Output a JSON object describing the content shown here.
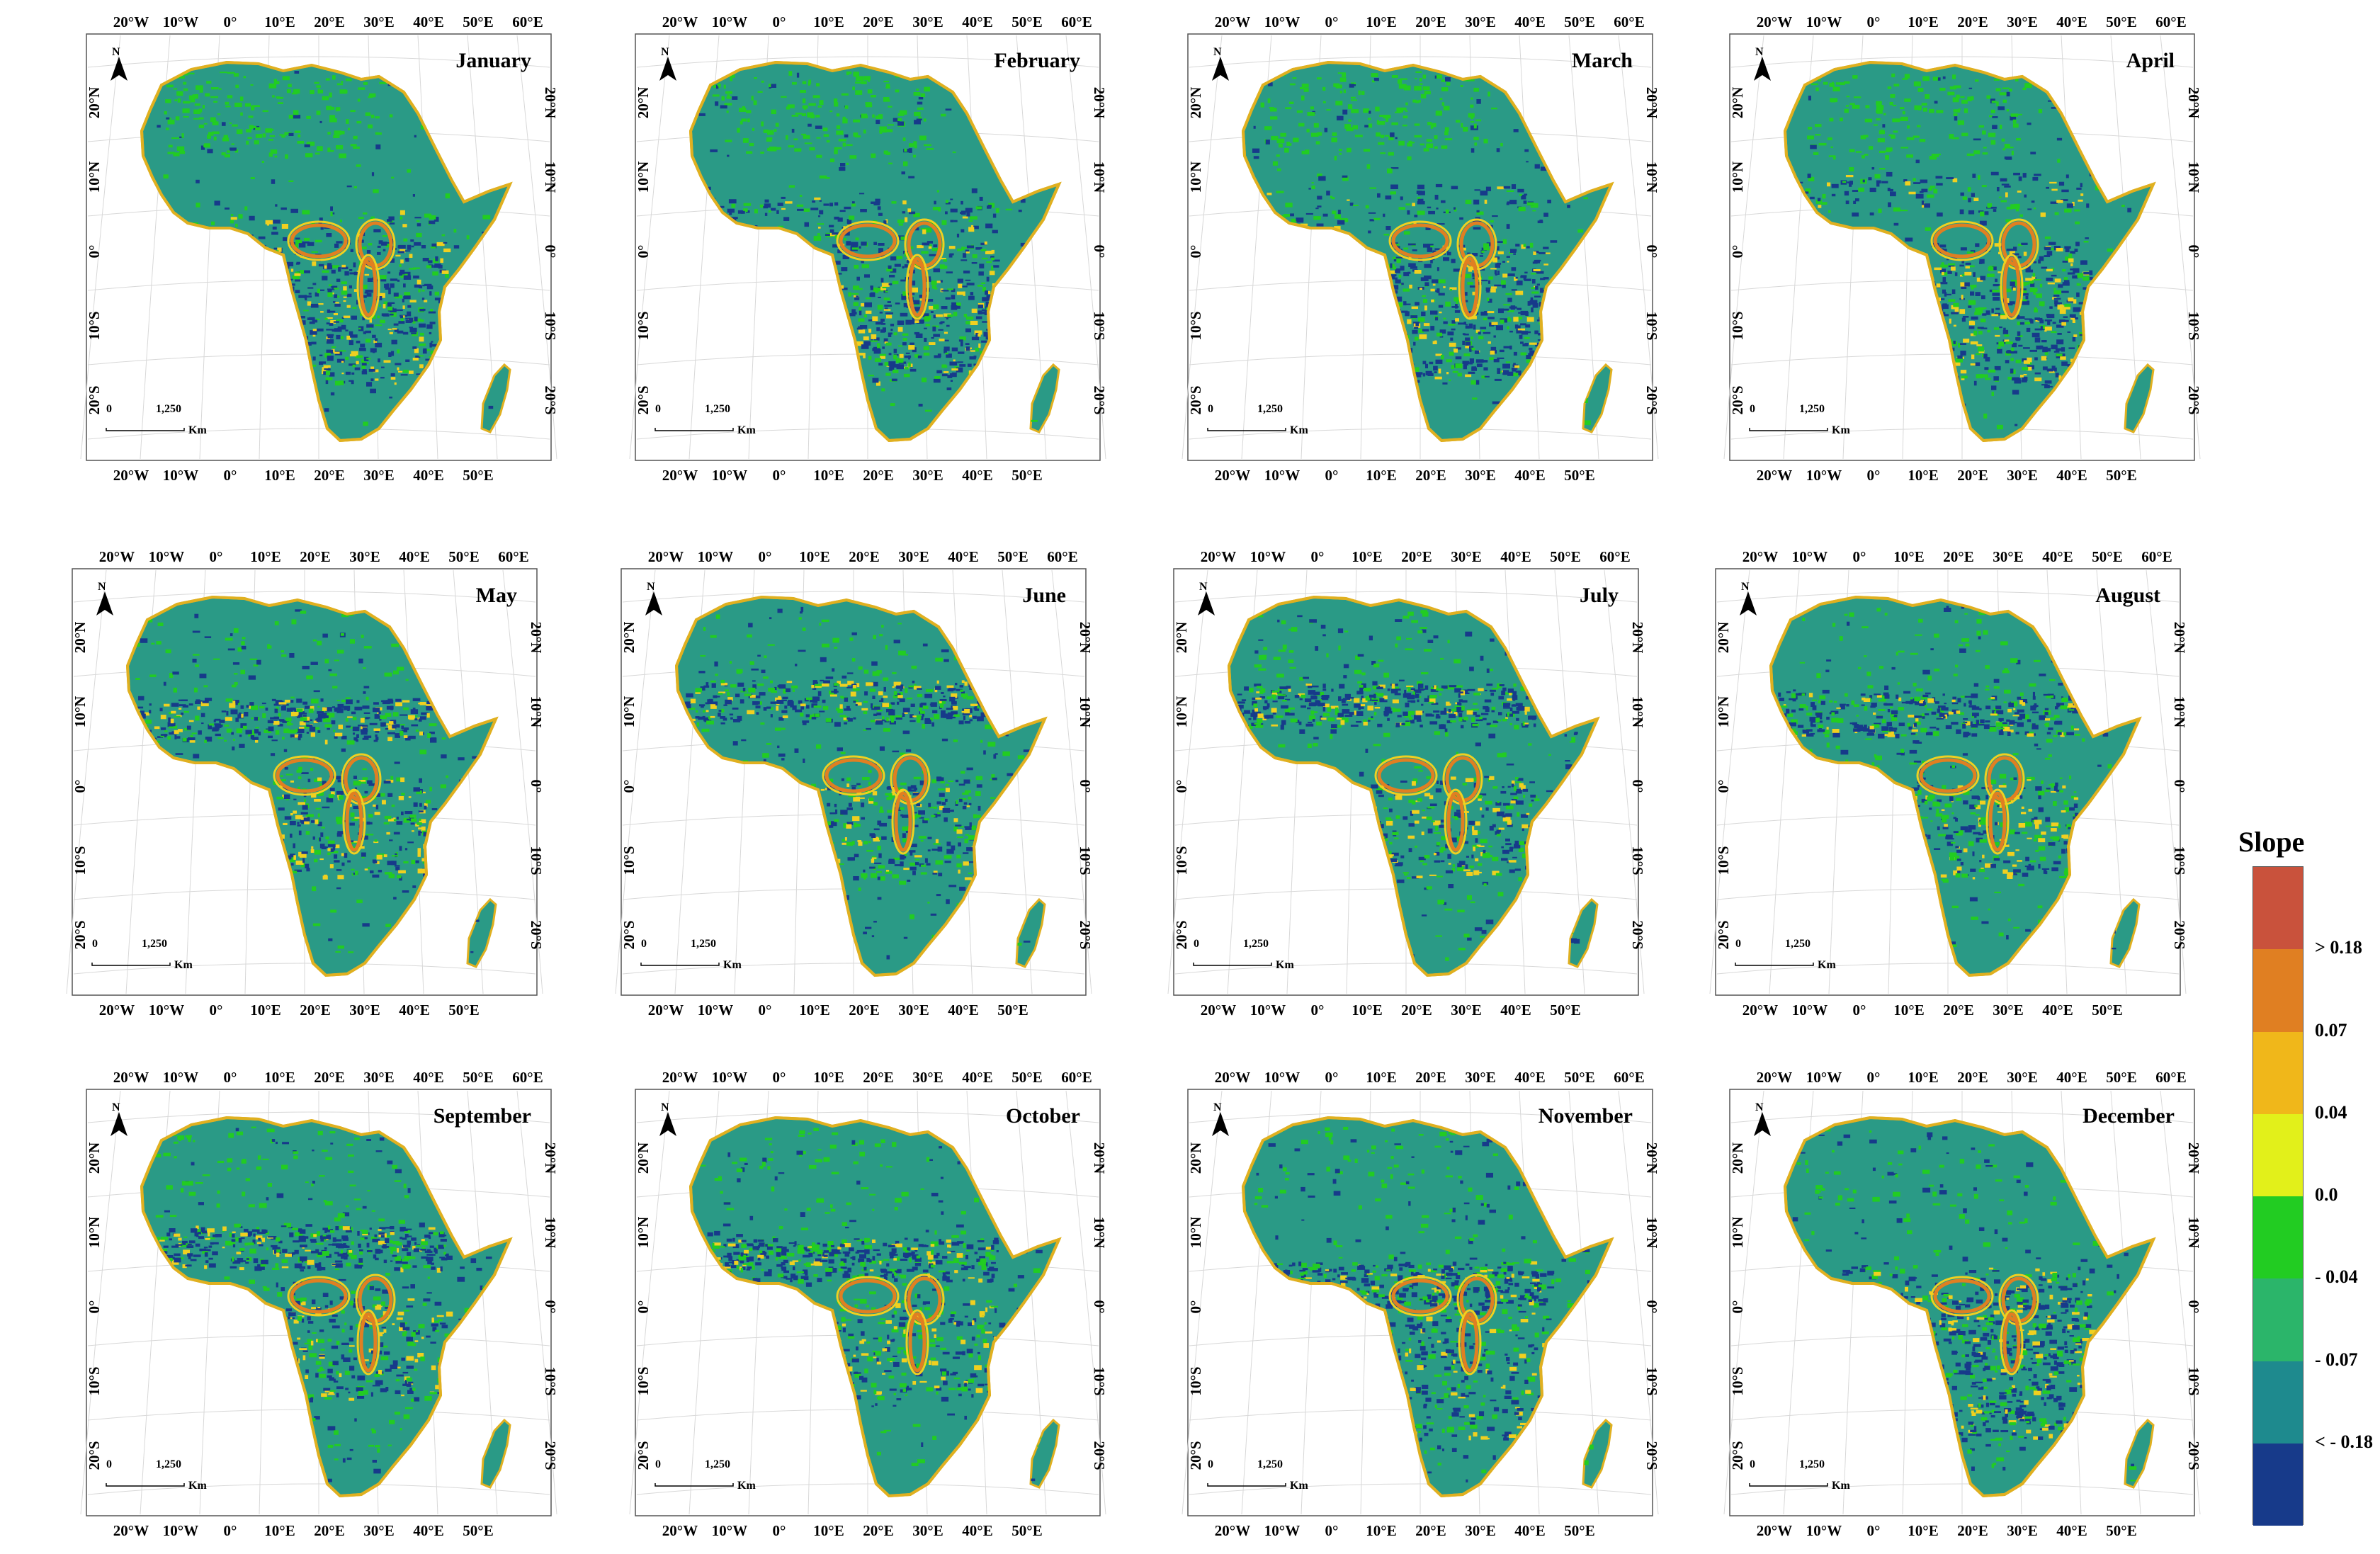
{
  "panels": [
    {
      "month": "January"
    },
    {
      "month": "February"
    },
    {
      "month": "March"
    },
    {
      "month": "April"
    },
    {
      "month": "May"
    },
    {
      "month": "June"
    },
    {
      "month": "July"
    },
    {
      "month": "August"
    },
    {
      "month": "September"
    },
    {
      "month": "October"
    },
    {
      "month": "November"
    },
    {
      "month": "December"
    }
  ],
  "lon_ticks_top": [
    "20°W",
    "10°W",
    "0°",
    "10°E",
    "20°E",
    "30°E",
    "40°E",
    "50°E",
    "60°E"
  ],
  "lon_ticks_bottom": [
    "20°W",
    "10°W",
    "0°",
    "10°E",
    "20°E",
    "30°E",
    "40°E",
    "50°E"
  ],
  "lat_ticks": [
    "20°N",
    "10°N",
    "0°",
    "10°S",
    "20°S"
  ],
  "north_label": "N",
  "scale": {
    "zero": "0",
    "distance": "1,250",
    "unit": "Km"
  },
  "legend": {
    "title": "Slope",
    "colors": [
      "#c9523c",
      "#e07f22",
      "#f0b71a",
      "#e2f01a",
      "#22cc22",
      "#2bb56a",
      "#1e8a8e",
      "#173a8a"
    ],
    "labels": [
      "> 0.18",
      "0.07",
      "0.04",
      "0.0",
      "- 0.04",
      "- 0.07",
      "< - 0.18"
    ]
  },
  "map_colors": {
    "land": "#2a9a86",
    "coast": "#e0b020",
    "blue": "#173a8a",
    "green": "#22cc22",
    "yellow": "#f0d020",
    "orange": "#e07f22"
  }
}
